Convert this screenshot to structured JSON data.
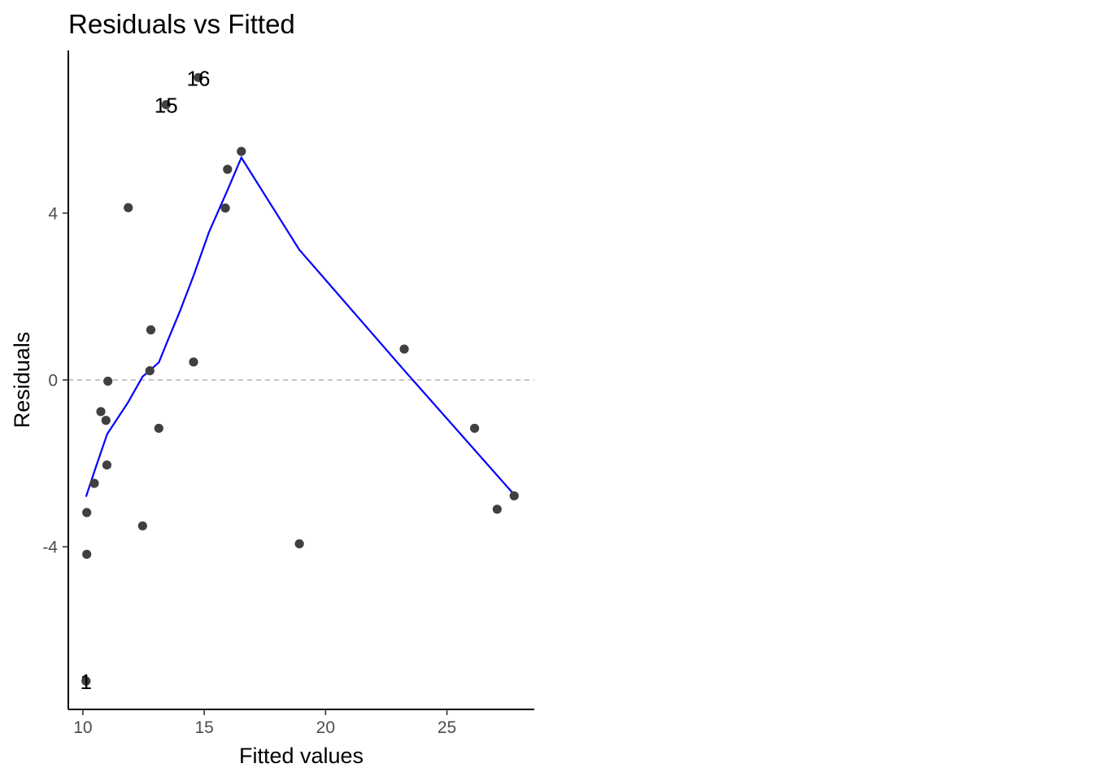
{
  "chart_data": {
    "type": "scatter",
    "title": "Residuals vs Fitted",
    "xlabel": "Fitted values",
    "ylabel": "Residuals",
    "xlim": [
      9.4,
      28.6
    ],
    "ylim": [
      -7.9,
      7.9
    ],
    "x_ticks": [
      10,
      15,
      20,
      25
    ],
    "y_ticks": [
      -4,
      0,
      4
    ],
    "reference_line": {
      "y": 0,
      "style": "dashed",
      "color": "#b3b3b3"
    },
    "point_color": "#404040",
    "smooth_color": "#0000ff",
    "points": [
      {
        "x": 10.13,
        "y": -7.22,
        "label": "1"
      },
      {
        "x": 10.16,
        "y": -4.18
      },
      {
        "x": 10.16,
        "y": -3.18
      },
      {
        "x": 10.47,
        "y": -2.48
      },
      {
        "x": 10.74,
        "y": -0.76
      },
      {
        "x": 10.95,
        "y": -0.97
      },
      {
        "x": 10.99,
        "y": -2.04
      },
      {
        "x": 11.03,
        "y": -0.03
      },
      {
        "x": 11.87,
        "y": 4.13
      },
      {
        "x": 12.46,
        "y": -3.5
      },
      {
        "x": 12.76,
        "y": 0.22
      },
      {
        "x": 12.8,
        "y": 1.2
      },
      {
        "x": 13.13,
        "y": -1.16
      },
      {
        "x": 13.43,
        "y": 6.6,
        "label": "15"
      },
      {
        "x": 14.56,
        "y": 0.43
      },
      {
        "x": 14.76,
        "y": 7.25,
        "label": "16"
      },
      {
        "x": 15.87,
        "y": 4.12
      },
      {
        "x": 15.96,
        "y": 5.05
      },
      {
        "x": 16.53,
        "y": 5.48
      },
      {
        "x": 18.92,
        "y": -3.93
      },
      {
        "x": 23.24,
        "y": 0.74
      },
      {
        "x": 26.14,
        "y": -1.16
      },
      {
        "x": 27.07,
        "y": -3.1
      },
      {
        "x": 27.77,
        "y": -2.78
      }
    ],
    "smooth_line": [
      {
        "x": 10.13,
        "y": -2.8
      },
      {
        "x": 10.5,
        "y": -2.15
      },
      {
        "x": 11.0,
        "y": -1.3
      },
      {
        "x": 11.87,
        "y": -0.53
      },
      {
        "x": 12.46,
        "y": 0.08
      },
      {
        "x": 12.8,
        "y": 0.25
      },
      {
        "x": 13.13,
        "y": 0.42
      },
      {
        "x": 13.43,
        "y": 0.85
      },
      {
        "x": 14.0,
        "y": 1.65
      },
      {
        "x": 14.56,
        "y": 2.5
      },
      {
        "x": 15.2,
        "y": 3.55
      },
      {
        "x": 15.96,
        "y": 4.55
      },
      {
        "x": 16.53,
        "y": 5.33
      },
      {
        "x": 18.92,
        "y": 3.12
      },
      {
        "x": 23.24,
        "y": 0.23
      },
      {
        "x": 27.77,
        "y": -2.75
      }
    ]
  }
}
